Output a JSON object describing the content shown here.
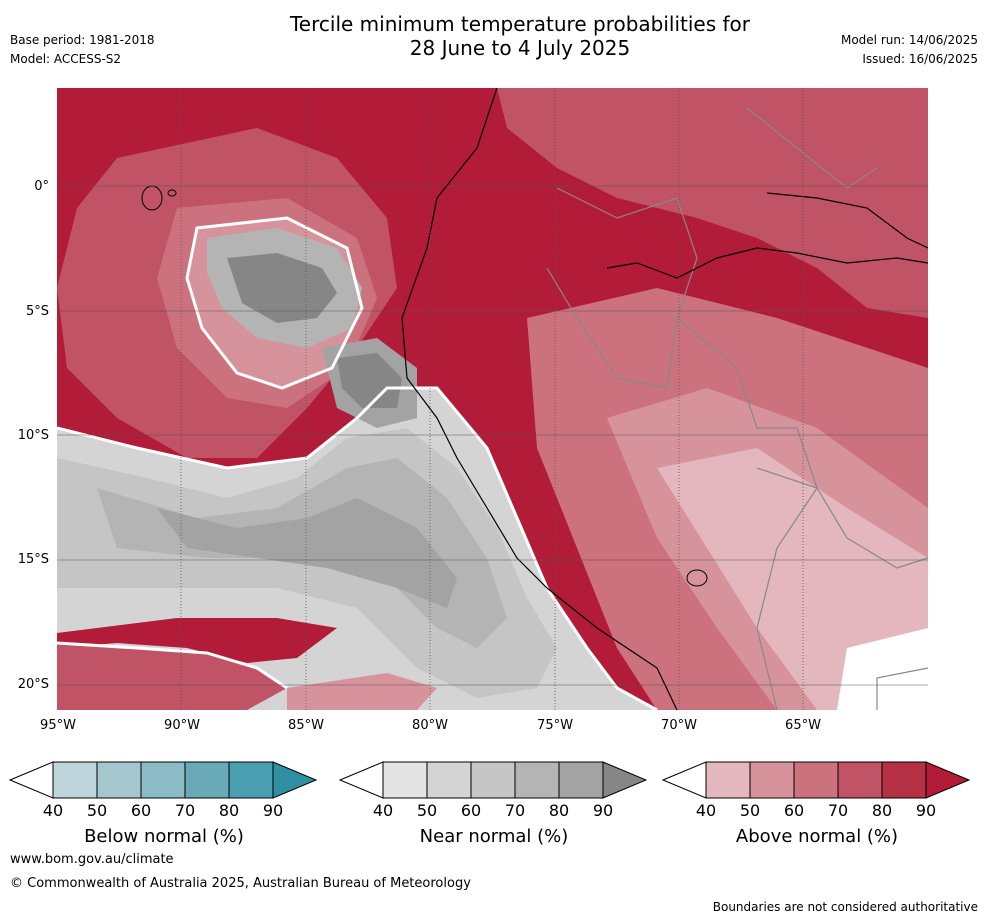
{
  "header": {
    "base_period": "Base period: 1981-2018",
    "model": "Model: ACCESS-S2",
    "title_line1": "Tercile minimum temperature probabilities for",
    "title_line2": "28 June to 4 July 2025",
    "model_run": "Model run: 14/06/2025",
    "issued": "Issued: 16/06/2025"
  },
  "map": {
    "lat_labels": [
      "0°",
      "5°S",
      "10°S",
      "15°S",
      "20°S"
    ],
    "lon_labels": [
      "95°W",
      "90°W",
      "85°W",
      "80°W",
      "75°W",
      "70°W",
      "65°W"
    ]
  },
  "legends": {
    "ticks": [
      "40",
      "50",
      "60",
      "70",
      "80",
      "90"
    ],
    "below": {
      "title": "Below normal (%)",
      "colors": [
        "#ffffff",
        "#bdd5da",
        "#a5c8cf",
        "#8bbbc5",
        "#6aaab8",
        "#4aa0b1",
        "#2f90a4"
      ]
    },
    "near": {
      "title": "Near normal (%)",
      "colors": [
        "#ffffff",
        "#e4e4e4",
        "#d4d4d4",
        "#c5c5c5",
        "#b4b4b4",
        "#a3a3a3",
        "#868686"
      ]
    },
    "above": {
      "title": "Above normal (%)",
      "colors": [
        "#ffffff",
        "#e3b7bd",
        "#d7939c",
        "#cc727e",
        "#c05365",
        "#b52f45",
        "#b21c38"
      ]
    }
  },
  "footer": {
    "url": "www.bom.gov.au/climate",
    "copyright": "© Commonwealth of Australia 2025, Australian Bureau of Meteorology",
    "disclaimer": "Boundaries are not considered authoritative"
  }
}
